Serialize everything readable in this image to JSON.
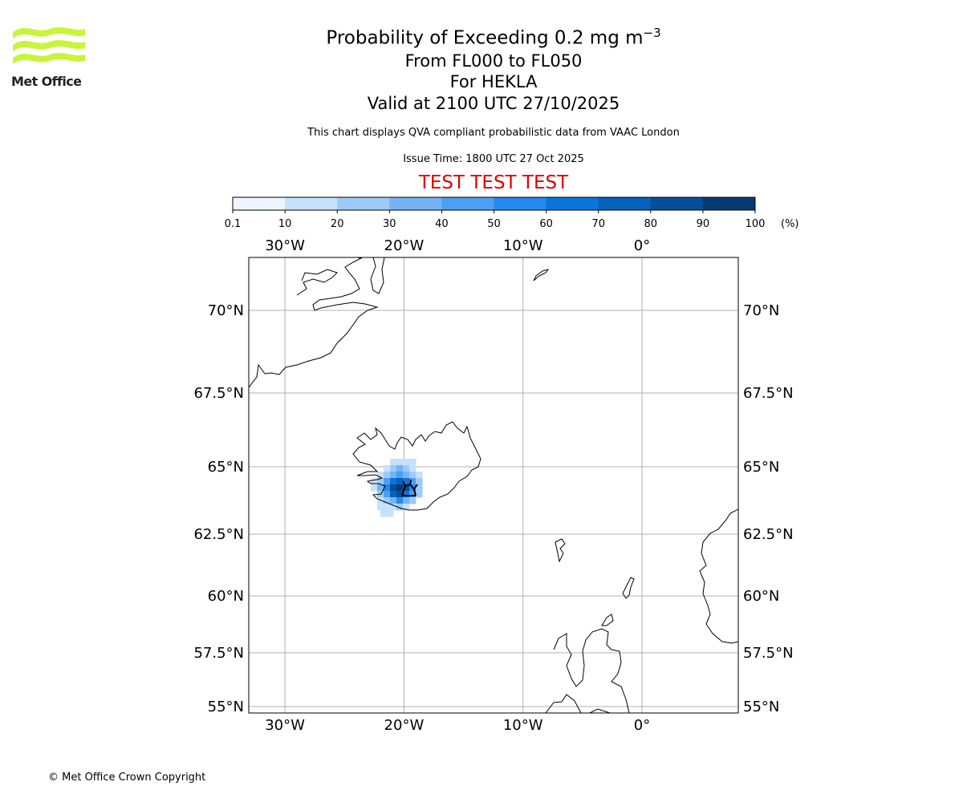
{
  "logo": {
    "text": "Met Office",
    "wave_color": "#c8f53c"
  },
  "titles": {
    "main": "Probability of Exceeding 0.2 mg m",
    "main_superscript": "−3",
    "levels": "From FL000 to FL050",
    "volcano": "For HEKLA",
    "valid": "Valid at 2100 UTC 27/10/2025"
  },
  "notes": {
    "description": "This chart displays QVA compliant probabilistic data from VAAC London",
    "issue_time": "Issue Time: 1800 UTC 27 Oct 2025",
    "test_banner": "TEST TEST TEST",
    "test_color": "#e00000"
  },
  "colorbar": {
    "unit_label": "(%)",
    "ticks": [
      "0.1",
      "10",
      "20",
      "30",
      "40",
      "50",
      "60",
      "70",
      "80",
      "90",
      "100"
    ],
    "colors": [
      "#eef5fe",
      "#c6e1fb",
      "#9dcbf8",
      "#74b4f5",
      "#4ba0f2",
      "#238bef",
      "#0a75dd",
      "#0762bd",
      "#054e98",
      "#043b74",
      "#032a55"
    ]
  },
  "map": {
    "lon_labels": [
      "30°W",
      "20°W",
      "10°W",
      "0°"
    ],
    "lon_values": [
      -30,
      -20,
      -10,
      0
    ],
    "lat_labels": [
      "70°N",
      "67.5°N",
      "65°N",
      "62.5°N",
      "60°N",
      "57.5°N",
      "55°N"
    ],
    "lat_values": [
      70,
      67.5,
      65,
      62.5,
      60,
      57.5,
      55
    ],
    "volcano_name": "HEKLA",
    "ash_region": "southwest Iceland"
  },
  "footer": {
    "copyright": "© Met Office Crown Copyright"
  }
}
